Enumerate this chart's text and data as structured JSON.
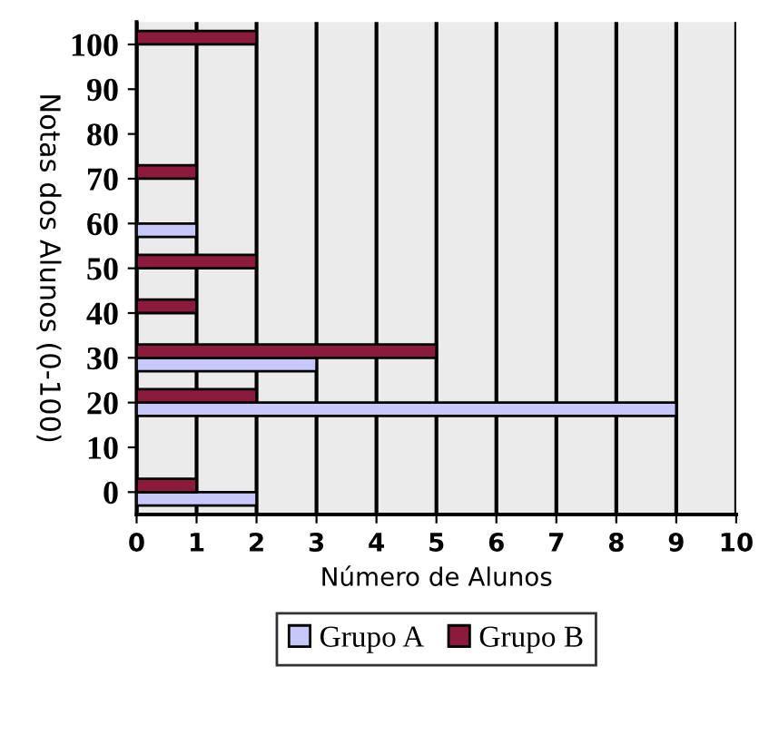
{
  "chart_data": {
    "type": "bar",
    "orientation": "horizontal",
    "xlabel": "Número de Alunos",
    "ylabel": "Notas dos Alunos (0-100)",
    "categories": [
      "100",
      "90",
      "80",
      "70",
      "60",
      "50",
      "40",
      "30",
      "20",
      "10",
      "0"
    ],
    "series": [
      {
        "name": "Grupo A",
        "color": "#c8c8f8",
        "values": [
          0,
          0,
          0,
          0,
          1,
          0,
          0,
          3,
          9,
          0,
          2
        ]
      },
      {
        "name": "Grupo B",
        "color": "#8b1a3c",
        "values": [
          2,
          0,
          0,
          1,
          0,
          2,
          1,
          5,
          2,
          0,
          1
        ]
      }
    ],
    "xlim": [
      0,
      10
    ],
    "xticks": [
      0,
      1,
      2,
      3,
      4,
      5,
      6,
      7,
      8,
      9,
      10
    ],
    "grid": "x",
    "legend": "bottom"
  }
}
